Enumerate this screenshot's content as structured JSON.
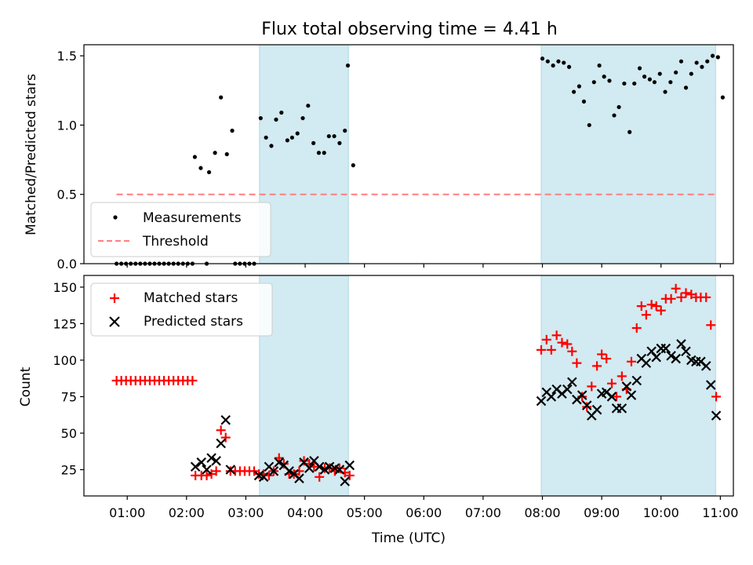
{
  "chart_data": [
    {
      "type": "scatter",
      "title": "Flux total observing time = 4.41 h",
      "ylabel": "Matched/Predicted stars",
      "xlabel": "",
      "ylim": [
        0,
        1.58
      ],
      "yticks": [
        0.0,
        0.5,
        1.0,
        1.5
      ],
      "ytick_labels": [
        "0.0",
        "0.5",
        "1.0",
        "1.5"
      ],
      "shaded_intervals_hours": [
        [
          3.23,
          4.73
        ],
        [
          7.98,
          10.92
        ]
      ],
      "legend_placement": "lower-left",
      "series": [
        {
          "name": "Measurements",
          "marker": "dot",
          "color": "#000000",
          "points": [
            [
              0.82,
              0
            ],
            [
              0.9,
              0
            ],
            [
              0.98,
              0
            ],
            [
              1.06,
              0
            ],
            [
              1.14,
              0
            ],
            [
              1.22,
              0
            ],
            [
              1.3,
              0
            ],
            [
              1.38,
              0
            ],
            [
              1.46,
              0
            ],
            [
              1.54,
              0
            ],
            [
              1.62,
              0
            ],
            [
              1.7,
              0
            ],
            [
              1.78,
              0
            ],
            [
              1.86,
              0
            ],
            [
              1.94,
              0
            ],
            [
              2.02,
              0
            ],
            [
              2.1,
              0
            ],
            [
              2.34,
              0
            ],
            [
              2.82,
              0
            ],
            [
              2.9,
              0
            ],
            [
              2.98,
              0
            ],
            [
              3.06,
              0
            ],
            [
              3.14,
              0
            ],
            [
              2.14,
              0.77
            ],
            [
              2.24,
              0.69
            ],
            [
              2.38,
              0.66
            ],
            [
              2.48,
              0.8
            ],
            [
              2.58,
              1.2
            ],
            [
              2.68,
              0.79
            ],
            [
              2.77,
              0.96
            ],
            [
              3.25,
              1.05
            ],
            [
              3.34,
              0.91
            ],
            [
              3.43,
              0.85
            ],
            [
              3.51,
              1.04
            ],
            [
              3.6,
              1.09
            ],
            [
              3.7,
              0.89
            ],
            [
              3.78,
              0.91
            ],
            [
              3.87,
              0.94
            ],
            [
              3.96,
              1.05
            ],
            [
              4.05,
              1.14
            ],
            [
              4.14,
              0.87
            ],
            [
              4.23,
              0.8
            ],
            [
              4.32,
              0.8
            ],
            [
              4.4,
              0.92
            ],
            [
              4.49,
              0.92
            ],
            [
              4.58,
              0.87
            ],
            [
              4.67,
              0.96
            ],
            [
              4.72,
              1.43
            ],
            [
              4.81,
              0.71
            ],
            [
              8.0,
              1.48
            ],
            [
              8.09,
              1.46
            ],
            [
              8.18,
              1.43
            ],
            [
              8.27,
              1.46
            ],
            [
              8.36,
              1.45
            ],
            [
              8.45,
              1.42
            ],
            [
              8.53,
              1.24
            ],
            [
              8.62,
              1.28
            ],
            [
              8.7,
              1.17
            ],
            [
              8.79,
              1.0
            ],
            [
              8.87,
              1.31
            ],
            [
              8.96,
              1.43
            ],
            [
              9.04,
              1.35
            ],
            [
              9.13,
              1.32
            ],
            [
              9.21,
              1.07
            ],
            [
              9.29,
              1.13
            ],
            [
              9.38,
              1.3
            ],
            [
              9.47,
              0.95
            ],
            [
              9.55,
              1.3
            ],
            [
              9.64,
              1.41
            ],
            [
              9.72,
              1.35
            ],
            [
              9.81,
              1.33
            ],
            [
              9.89,
              1.31
            ],
            [
              9.98,
              1.37
            ],
            [
              10.07,
              1.24
            ],
            [
              10.16,
              1.31
            ],
            [
              10.25,
              1.38
            ],
            [
              10.34,
              1.46
            ],
            [
              10.42,
              1.27
            ],
            [
              10.51,
              1.37
            ],
            [
              10.6,
              1.45
            ],
            [
              10.69,
              1.42
            ],
            [
              10.78,
              1.46
            ],
            [
              10.87,
              1.5
            ],
            [
              10.96,
              1.49
            ],
            [
              11.04,
              1.2
            ]
          ]
        },
        {
          "name": "Threshold",
          "marker": "dashed-line",
          "color": "#ff7f7f",
          "y": 0.5,
          "x_range": [
            0.82,
            10.92
          ]
        }
      ]
    },
    {
      "type": "scatter",
      "title": "",
      "ylabel": "Count",
      "xlabel": "Time (UTC)",
      "ylim": [
        7,
        158
      ],
      "yticks": [
        25,
        50,
        75,
        100,
        125,
        150
      ],
      "ytick_labels": [
        "25",
        "50",
        "75",
        "100",
        "125",
        "150"
      ],
      "xlim": [
        0.27,
        11.22
      ],
      "xticks": [
        1,
        2,
        3,
        4,
        5,
        6,
        7,
        8,
        9,
        10,
        11
      ],
      "xtick_labels": [
        "01:00",
        "02:00",
        "03:00",
        "04:00",
        "05:00",
        "06:00",
        "07:00",
        "08:00",
        "09:00",
        "10:00",
        "11:00"
      ],
      "shaded_intervals_hours": [
        [
          3.23,
          4.73
        ],
        [
          7.98,
          10.92
        ]
      ],
      "legend_placement": "upper-left",
      "series": [
        {
          "name": "Matched stars",
          "marker": "plus",
          "color": "#ff0000",
          "points": [
            [
              0.82,
              86
            ],
            [
              0.9,
              86
            ],
            [
              0.98,
              86
            ],
            [
              1.06,
              86
            ],
            [
              1.14,
              86
            ],
            [
              1.22,
              86
            ],
            [
              1.3,
              86
            ],
            [
              1.38,
              86
            ],
            [
              1.46,
              86
            ],
            [
              1.54,
              86
            ],
            [
              1.62,
              86
            ],
            [
              1.7,
              86
            ],
            [
              1.78,
              86
            ],
            [
              1.86,
              86
            ],
            [
              1.94,
              86
            ],
            [
              2.02,
              86
            ],
            [
              2.1,
              86
            ],
            [
              2.15,
              21
            ],
            [
              2.25,
              21
            ],
            [
              2.34,
              21
            ],
            [
              2.42,
              22
            ],
            [
              2.5,
              24
            ],
            [
              2.58,
              52
            ],
            [
              2.66,
              47
            ],
            [
              2.74,
              24
            ],
            [
              2.82,
              24
            ],
            [
              2.9,
              24
            ],
            [
              2.98,
              24
            ],
            [
              3.06,
              24
            ],
            [
              3.14,
              24
            ],
            [
              3.22,
              22
            ],
            [
              3.3,
              22
            ],
            [
              3.39,
              21
            ],
            [
              3.47,
              24
            ],
            [
              3.56,
              33
            ],
            [
              3.64,
              29
            ],
            [
              3.73,
              22
            ],
            [
              3.81,
              22
            ],
            [
              3.9,
              24
            ],
            [
              3.98,
              31
            ],
            [
              4.07,
              29
            ],
            [
              4.15,
              27
            ],
            [
              4.24,
              20
            ],
            [
              4.33,
              26
            ],
            [
              4.41,
              26
            ],
            [
              4.5,
              24
            ],
            [
              4.58,
              26
            ],
            [
              4.67,
              23
            ],
            [
              4.75,
              21
            ],
            [
              7.98,
              107
            ],
            [
              8.07,
              114
            ],
            [
              8.15,
              107
            ],
            [
              8.24,
              117
            ],
            [
              8.33,
              112
            ],
            [
              8.42,
              111
            ],
            [
              8.5,
              106
            ],
            [
              8.58,
              98
            ],
            [
              8.67,
              75
            ],
            [
              8.75,
              68
            ],
            [
              8.83,
              82
            ],
            [
              8.92,
              96
            ],
            [
              9.0,
              104
            ],
            [
              9.08,
              101
            ],
            [
              9.17,
              84
            ],
            [
              9.25,
              75
            ],
            [
              9.34,
              89
            ],
            [
              9.42,
              80
            ],
            [
              9.5,
              99
            ],
            [
              9.59,
              122
            ],
            [
              9.67,
              137
            ],
            [
              9.75,
              131
            ],
            [
              9.84,
              138
            ],
            [
              9.92,
              137
            ],
            [
              10.0,
              134
            ],
            [
              10.08,
              142
            ],
            [
              10.17,
              142
            ],
            [
              10.25,
              149
            ],
            [
              10.34,
              143
            ],
            [
              10.42,
              146
            ],
            [
              10.51,
              145
            ],
            [
              10.59,
              143
            ],
            [
              10.67,
              143
            ],
            [
              10.76,
              143
            ],
            [
              10.84,
              124
            ],
            [
              10.93,
              75
            ]
          ]
        },
        {
          "name": "Predicted stars",
          "marker": "x",
          "color": "#000000",
          "points": [
            [
              2.15,
              27
            ],
            [
              2.25,
              30
            ],
            [
              2.34,
              25
            ],
            [
              2.42,
              33
            ],
            [
              2.5,
              31
            ],
            [
              2.58,
              43
            ],
            [
              2.66,
              59
            ],
            [
              2.74,
              25
            ],
            [
              3.22,
              21
            ],
            [
              3.3,
              20
            ],
            [
              3.39,
              27
            ],
            [
              3.47,
              24
            ],
            [
              3.56,
              30
            ],
            [
              3.64,
              28
            ],
            [
              3.73,
              24
            ],
            [
              3.81,
              22
            ],
            [
              3.9,
              19
            ],
            [
              3.98,
              30
            ],
            [
              4.07,
              26
            ],
            [
              4.15,
              31
            ],
            [
              4.24,
              27
            ],
            [
              4.33,
              25
            ],
            [
              4.41,
              27
            ],
            [
              4.5,
              26
            ],
            [
              4.58,
              25
            ],
            [
              4.67,
              17
            ],
            [
              4.75,
              28
            ],
            [
              7.98,
              72
            ],
            [
              8.07,
              78
            ],
            [
              8.15,
              75
            ],
            [
              8.24,
              80
            ],
            [
              8.33,
              77
            ],
            [
              8.42,
              80
            ],
            [
              8.5,
              85
            ],
            [
              8.58,
              73
            ],
            [
              8.67,
              76
            ],
            [
              8.75,
              69
            ],
            [
              8.83,
              62
            ],
            [
              8.92,
              66
            ],
            [
              9.0,
              77
            ],
            [
              9.08,
              78
            ],
            [
              9.17,
              75
            ],
            [
              9.25,
              67
            ],
            [
              9.34,
              67
            ],
            [
              9.42,
              82
            ],
            [
              9.5,
              76
            ],
            [
              9.59,
              86
            ],
            [
              9.67,
              101
            ],
            [
              9.75,
              98
            ],
            [
              9.84,
              106
            ],
            [
              9.92,
              102
            ],
            [
              10.0,
              108
            ],
            [
              10.08,
              108
            ],
            [
              10.17,
              103
            ],
            [
              10.25,
              101
            ],
            [
              10.34,
              111
            ],
            [
              10.42,
              106
            ],
            [
              10.51,
              100
            ],
            [
              10.59,
              99
            ],
            [
              10.67,
              99
            ],
            [
              10.76,
              96
            ],
            [
              10.84,
              83
            ],
            [
              10.93,
              62
            ]
          ]
        }
      ]
    }
  ]
}
